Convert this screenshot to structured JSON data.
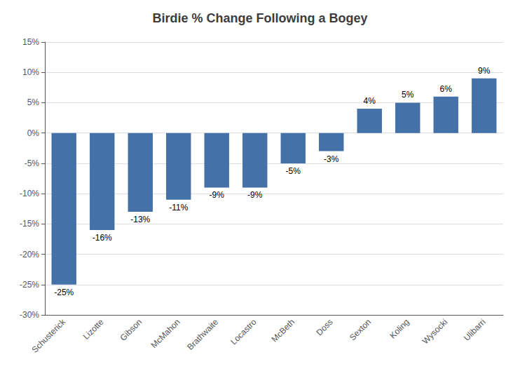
{
  "chart_data": {
    "type": "bar",
    "title": "Birdie % Change Following a Bogey",
    "categories": [
      "Schusterick",
      "Lizotte",
      "Gibson",
      "McMahon",
      "Brathwaite",
      "Locastro",
      "McBeth",
      "Doss",
      "Sexton",
      "Koling",
      "Wysocki",
      "Ulibarri"
    ],
    "values": [
      -25,
      -16,
      -13,
      -11,
      -9,
      -9,
      -5,
      -3,
      4,
      5,
      6,
      9
    ],
    "value_labels": [
      "-25%",
      "-16%",
      "-13%",
      "-11%",
      "-9%",
      "-9%",
      "-5%",
      "-3%",
      "4%",
      "5%",
      "6%",
      "9%"
    ],
    "data_labels": true,
    "color": "#4472A8",
    "ylim": [
      -30,
      15
    ],
    "yticks": [
      {
        "value": -30,
        "label": "-30%"
      },
      {
        "value": -25,
        "label": "-25%"
      },
      {
        "value": -20,
        "label": "-20%"
      },
      {
        "value": -15,
        "label": "-15%"
      },
      {
        "value": -10,
        "label": "-10%"
      },
      {
        "value": -5,
        "label": "-5%"
      },
      {
        "value": 0,
        "label": "0%"
      },
      {
        "value": 5,
        "label": "5%"
      },
      {
        "value": 10,
        "label": "10%"
      },
      {
        "value": 15,
        "label": "15%"
      }
    ],
    "grid": true
  }
}
